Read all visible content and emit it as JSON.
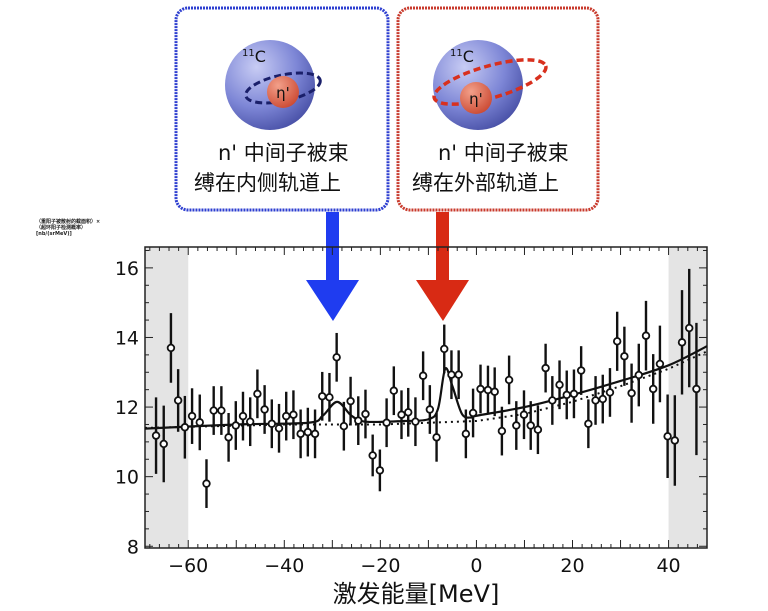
{
  "panels": [
    {
      "nucleus": "11C",
      "nucleus_mass": "11",
      "nucleus_symbol": "C",
      "meson": "η'",
      "caption_line1": "n' 中间子被束",
      "caption_line2": "缚在内侧轨道上",
      "color": "#2e3fd0",
      "arrow_color": "#1f3cf0",
      "arrow_at": -30
    },
    {
      "nucleus": "11C",
      "nucleus_mass": "11",
      "nucleus_symbol": "C",
      "meson": "η'",
      "caption_line1": "n' 中间子被束",
      "caption_line2": "缚在外部轨道上",
      "color": "#c83a2c",
      "arrow_color": "#d82a14",
      "arrow_at": -7
    }
  ],
  "chart_data": {
    "type": "scatter",
    "title": "",
    "xlabel": "激发能量[MeV]",
    "ylabel": "（重阳子被散射的截面积）×（超环阳子检测概率）[nb/(srMeV)]",
    "xlim": [
      -69,
      48
    ],
    "ylim": [
      7.95,
      16.6
    ],
    "xticks": [
      -60,
      -40,
      -20,
      0,
      20,
      40
    ],
    "yticks": [
      8,
      10,
      12,
      14,
      16
    ],
    "xtick_labels": [
      "−60",
      "−40",
      "−20",
      "0",
      "20",
      "40"
    ],
    "ytick_labels": [
      "8",
      "10",
      "12",
      "14",
      "16"
    ],
    "shaded_regions": [
      [
        -69,
        -60
      ],
      [
        40,
        48
      ]
    ],
    "points": [
      [
        -66.7,
        11.18,
        1.1
      ],
      [
        -65.1,
        10.94,
        1.1
      ],
      [
        -63.6,
        13.7,
        1.0
      ],
      [
        -62.1,
        12.19,
        0.9
      ],
      [
        -60.7,
        11.42,
        0.9
      ],
      [
        -59.2,
        11.74,
        0.8
      ],
      [
        -57.6,
        11.56,
        0.8
      ],
      [
        -56.2,
        9.8,
        0.7
      ],
      [
        -54.7,
        11.9,
        0.7
      ],
      [
        -53.1,
        11.9,
        0.7
      ],
      [
        -51.6,
        11.13,
        0.7
      ],
      [
        -50.1,
        11.47,
        0.7
      ],
      [
        -48.6,
        11.74,
        0.7
      ],
      [
        -47.1,
        11.58,
        0.7
      ],
      [
        -45.6,
        12.38,
        0.7
      ],
      [
        -44.1,
        11.93,
        0.7
      ],
      [
        -42.6,
        11.52,
        0.7
      ],
      [
        -41.1,
        11.39,
        0.7
      ],
      [
        -39.6,
        11.74,
        0.7
      ],
      [
        -38.1,
        11.78,
        0.7
      ],
      [
        -36.6,
        11.23,
        0.7
      ],
      [
        -35.1,
        11.28,
        0.7
      ],
      [
        -33.6,
        11.23,
        0.7
      ],
      [
        -32.1,
        12.31,
        0.7
      ],
      [
        -30.6,
        12.28,
        0.7
      ],
      [
        -29.1,
        13.43,
        0.7
      ],
      [
        -27.6,
        11.45,
        0.7
      ],
      [
        -26.2,
        12.17,
        0.7
      ],
      [
        -24.6,
        11.61,
        0.7
      ],
      [
        -23.1,
        11.8,
        0.7
      ],
      [
        -21.6,
        10.61,
        0.6
      ],
      [
        -20.1,
        10.18,
        0.6
      ],
      [
        -18.7,
        11.55,
        0.7
      ],
      [
        -17.2,
        12.47,
        0.7
      ],
      [
        -15.6,
        11.78,
        0.7
      ],
      [
        -14.2,
        11.85,
        0.7
      ],
      [
        -12.7,
        11.58,
        0.7
      ],
      [
        -11.1,
        12.9,
        0.7
      ],
      [
        -9.7,
        11.93,
        0.7
      ],
      [
        -8.3,
        11.13,
        0.7
      ],
      [
        -6.7,
        13.67,
        0.7
      ],
      [
        -5.2,
        12.93,
        0.7
      ],
      [
        -3.7,
        12.93,
        0.7
      ],
      [
        -2.2,
        11.23,
        0.7
      ],
      [
        -0.7,
        11.83,
        0.7
      ],
      [
        0.85,
        12.52,
        0.7
      ],
      [
        2.4,
        12.49,
        0.7
      ],
      [
        3.8,
        12.44,
        0.7
      ],
      [
        5.3,
        11.31,
        0.7
      ],
      [
        6.8,
        12.78,
        0.7
      ],
      [
        8.3,
        11.47,
        0.7
      ],
      [
        9.9,
        11.78,
        0.7
      ],
      [
        11.3,
        11.47,
        0.7
      ],
      [
        12.8,
        11.35,
        0.7
      ],
      [
        14.4,
        13.12,
        0.7
      ],
      [
        15.8,
        12.19,
        0.7
      ],
      [
        17.3,
        12.64,
        0.7
      ],
      [
        18.8,
        12.35,
        0.7
      ],
      [
        20.3,
        12.38,
        0.7
      ],
      [
        21.8,
        13.05,
        0.7
      ],
      [
        23.3,
        11.52,
        0.7
      ],
      [
        24.8,
        12.19,
        0.7
      ],
      [
        26.3,
        12.23,
        0.7
      ],
      [
        27.8,
        12.42,
        0.7
      ],
      [
        29.3,
        13.89,
        0.85
      ],
      [
        30.8,
        13.46,
        0.85
      ],
      [
        32.3,
        12.4,
        0.85
      ],
      [
        33.8,
        12.92,
        0.9
      ],
      [
        35.3,
        14.05,
        1.0
      ],
      [
        36.8,
        12.52,
        1.0
      ],
      [
        38.2,
        13.24,
        1.1
      ],
      [
        39.8,
        11.16,
        1.2
      ],
      [
        41.3,
        11.04,
        1.3
      ],
      [
        42.8,
        13.86,
        1.5
      ],
      [
        44.3,
        14.27,
        1.7
      ],
      [
        45.8,
        12.52,
        1.9
      ]
    ],
    "fit_curve": [
      [
        -69,
        11.38
      ],
      [
        -50,
        11.5
      ],
      [
        -35,
        11.55
      ],
      [
        -32,
        11.75
      ],
      [
        -29,
        12.15
      ],
      [
        -26,
        11.75
      ],
      [
        -23,
        11.58
      ],
      [
        -15,
        11.6
      ],
      [
        -10,
        11.65
      ],
      [
        -8,
        11.95
      ],
      [
        -6.5,
        13.1
      ],
      [
        -5,
        12.6
      ],
      [
        -3,
        11.8
      ],
      [
        -1,
        11.7
      ],
      [
        0,
        11.75
      ],
      [
        10,
        12.0
      ],
      [
        20,
        12.35
      ],
      [
        30,
        12.75
      ],
      [
        40,
        13.2
      ],
      [
        48,
        13.75
      ]
    ],
    "background_curve": [
      [
        -69,
        11.4
      ],
      [
        -40,
        11.5
      ],
      [
        -20,
        11.5
      ],
      [
        0,
        11.6
      ],
      [
        10,
        11.8
      ],
      [
        20,
        12.15
      ],
      [
        30,
        12.6
      ],
      [
        40,
        13.1
      ],
      [
        48,
        13.6
      ]
    ]
  }
}
